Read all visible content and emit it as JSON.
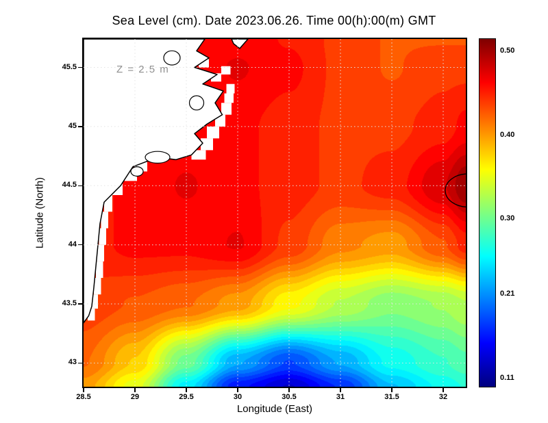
{
  "title": "Sea Level (cm). Date 2023.06.26. Time 00(h):00(m) GMT",
  "annotation": "Z = 2.5 m",
  "axes": {
    "xlabel": "Longitude (East)",
    "ylabel": "Latitude (North)",
    "x_ticks": [
      28.5,
      29,
      29.5,
      30,
      30.5,
      31,
      31.5,
      32
    ],
    "x_tick_labels": [
      "28.5",
      "29",
      "29.5",
      "30",
      "30.5",
      "31",
      "31.5",
      "32"
    ],
    "y_ticks": [
      43,
      43.5,
      44,
      44.5,
      45,
      45.5
    ],
    "y_tick_labels": [
      "43",
      "43.5",
      "44",
      "44.5",
      "45",
      "45.5"
    ],
    "xlim": [
      28.5,
      32.22
    ],
    "ylim": [
      42.8,
      45.74
    ],
    "grid": "dotted"
  },
  "colorbar": {
    "labels": [
      "0.50",
      "0.40",
      "0.30",
      "0.21",
      "0.11"
    ],
    "values": [
      0.5,
      0.4,
      0.3,
      0.21,
      0.11
    ],
    "vmin": 0.1,
    "vmax": 0.515,
    "colormap": "jet",
    "position": "right"
  },
  "chart_data": {
    "type": "heatmap",
    "title": "Sea Level (cm). Date 2023.06.26. Time 00(h):00(m) GMT",
    "xlabel": "Longitude (East)",
    "ylabel": "Latitude (North)",
    "units": "cm",
    "value_range": [
      0.11,
      0.5
    ],
    "x": [
      28.5,
      29.0,
      29.5,
      30.0,
      30.5,
      31.0,
      31.5,
      32.0,
      32.22
    ],
    "y": [
      42.8,
      43.0,
      43.5,
      44.0,
      44.5,
      45.0,
      45.5,
      45.74
    ],
    "values": [
      [
        0.4,
        0.35,
        0.25,
        0.16,
        0.13,
        0.17,
        0.23,
        0.26,
        0.27
      ],
      [
        0.42,
        0.38,
        0.3,
        0.22,
        0.18,
        0.22,
        0.26,
        0.28,
        0.29
      ],
      [
        0.44,
        0.43,
        0.42,
        0.4,
        0.36,
        0.33,
        0.31,
        0.32,
        0.33
      ],
      [
        0.45,
        0.46,
        0.46,
        0.47,
        0.44,
        0.41,
        0.4,
        0.43,
        0.45
      ],
      [
        0.45,
        0.46,
        0.47,
        0.46,
        0.45,
        0.44,
        0.45,
        0.48,
        0.505
      ],
      [
        0.45,
        0.45,
        0.46,
        0.46,
        0.45,
        0.44,
        0.44,
        0.45,
        0.46
      ],
      [
        0.44,
        0.45,
        0.46,
        0.47,
        0.46,
        0.44,
        0.43,
        0.44,
        0.44
      ],
      [
        0.44,
        0.45,
        0.46,
        0.465,
        0.455,
        0.44,
        0.43,
        0.43,
        0.43
      ]
    ]
  },
  "map": {
    "coastline": [
      [
        28.5,
        45.74
      ],
      [
        29.68,
        45.74
      ],
      [
        29.6,
        45.64
      ],
      [
        29.72,
        45.58
      ],
      [
        29.58,
        45.5
      ],
      [
        29.8,
        45.44
      ],
      [
        29.66,
        45.36
      ],
      [
        29.86,
        45.3
      ],
      [
        29.78,
        45.2
      ],
      [
        29.85,
        45.1
      ],
      [
        29.7,
        45.02
      ],
      [
        29.58,
        44.94
      ],
      [
        29.66,
        44.86
      ],
      [
        29.55,
        44.76
      ],
      [
        29.4,
        44.72
      ],
      [
        29.22,
        44.74
      ],
      [
        28.98,
        44.66
      ],
      [
        28.86,
        44.5
      ],
      [
        28.7,
        44.36
      ],
      [
        28.66,
        44.18
      ],
      [
        28.64,
        44.0
      ],
      [
        28.62,
        43.82
      ],
      [
        28.6,
        43.64
      ],
      [
        28.58,
        43.48
      ],
      [
        28.55,
        43.4
      ],
      [
        28.5,
        43.34
      ]
    ],
    "north_inlet": [
      [
        29.94,
        45.74
      ],
      [
        30.1,
        45.74
      ],
      [
        30.02,
        45.66
      ],
      [
        29.96,
        45.7
      ]
    ],
    "lakes": [
      [
        29.22,
        44.74,
        0.12,
        0.05
      ],
      [
        29.02,
        44.62,
        0.06,
        0.04
      ],
      [
        29.6,
        45.2,
        0.07,
        0.06
      ],
      [
        29.36,
        45.58,
        0.08,
        0.06
      ]
    ],
    "mask_blocks": [
      [
        28.54,
        43.36,
        0.07,
        0.1
      ],
      [
        28.57,
        43.46,
        0.07,
        0.12
      ],
      [
        28.6,
        43.58,
        0.07,
        0.14
      ],
      [
        28.62,
        43.72,
        0.07,
        0.14
      ],
      [
        28.63,
        43.86,
        0.07,
        0.14
      ],
      [
        28.65,
        44.0,
        0.07,
        0.14
      ],
      [
        28.67,
        44.14,
        0.07,
        0.14
      ],
      [
        28.7,
        44.28,
        0.08,
        0.14
      ],
      [
        28.78,
        44.42,
        0.1,
        0.12
      ],
      [
        28.9,
        44.54,
        0.12,
        0.1
      ],
      [
        29.0,
        44.62,
        0.12,
        0.08
      ],
      [
        29.55,
        44.72,
        0.14,
        0.08
      ],
      [
        29.64,
        44.8,
        0.12,
        0.1
      ],
      [
        29.7,
        44.9,
        0.12,
        0.1
      ],
      [
        29.78,
        45.0,
        0.1,
        0.1
      ],
      [
        29.84,
        45.1,
        0.1,
        0.1
      ],
      [
        29.87,
        45.2,
        0.09,
        0.08
      ],
      [
        29.89,
        45.28,
        0.08,
        0.08
      ],
      [
        29.74,
        45.38,
        0.1,
        0.07
      ],
      [
        29.84,
        45.44,
        0.09,
        0.07
      ],
      [
        29.62,
        45.5,
        0.1,
        0.07
      ]
    ],
    "high_contour": {
      "lon": 32.24,
      "lat": 44.46,
      "rx": 0.22,
      "ry": 0.14
    }
  }
}
